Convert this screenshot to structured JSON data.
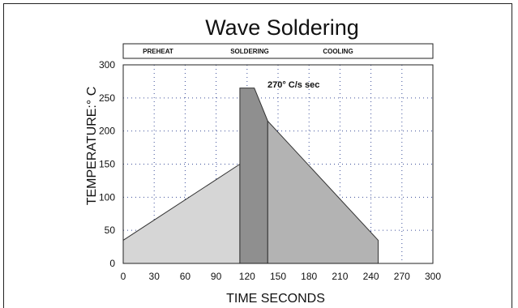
{
  "chart_data": {
    "type": "area",
    "title": "Wave Soldering",
    "xlabel": "TIME SECONDS",
    "ylabel": "TEMPERATURE:° C",
    "xlim": [
      0,
      300
    ],
    "ylim": [
      0,
      300
    ],
    "x_ticks": [
      0,
      30,
      60,
      90,
      120,
      150,
      180,
      210,
      240,
      270,
      300
    ],
    "y_ticks": [
      0,
      50,
      100,
      150,
      200,
      250,
      300
    ],
    "grid": true,
    "phases": [
      "PREHEAT",
      "SOLDERING",
      "COOLING"
    ],
    "annotation": "270° C/s sec",
    "series": [
      {
        "segment": "preheat",
        "x": [
          0,
          113
        ],
        "y": [
          35,
          150
        ],
        "color": "#d6d6d6"
      },
      {
        "segment": "soldering",
        "x": [
          113,
          113,
          127,
          140,
          140
        ],
        "y": [
          150,
          265,
          265,
          215,
          0
        ],
        "color": "#8f8f8f"
      },
      {
        "segment": "cooling",
        "x": [
          140,
          247
        ],
        "y": [
          215,
          35
        ],
        "color": "#b3b3b3"
      }
    ]
  }
}
